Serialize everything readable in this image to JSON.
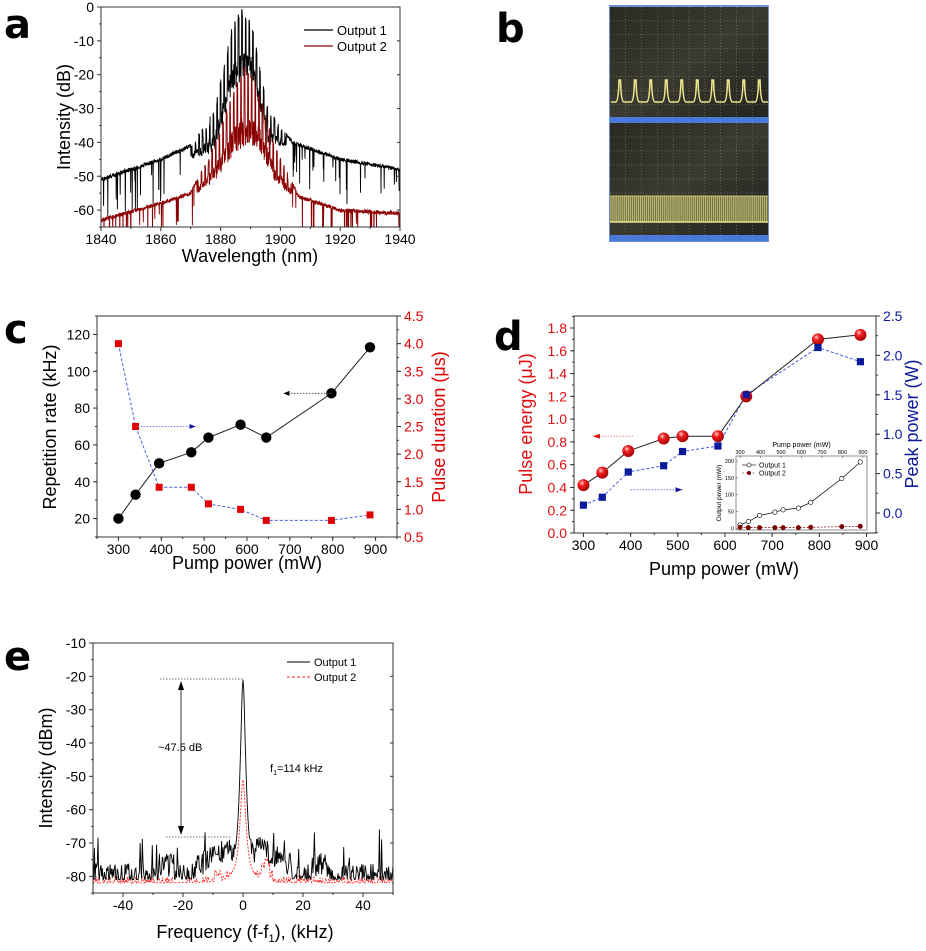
{
  "panels": {
    "a": "a",
    "b": "b",
    "c": "c",
    "d": "d",
    "e": "e"
  },
  "chart_data": [
    {
      "id": "a",
      "type": "line",
      "title": "",
      "xlabel": "Wavelength (nm)",
      "ylabel": "Intensity (dB)",
      "xlim": [
        1840,
        1940
      ],
      "ylim": [
        -65,
        0
      ],
      "xticks": [
        1840,
        1860,
        1880,
        1900,
        1920,
        1940
      ],
      "yticks": [
        0,
        -10,
        -20,
        -30,
        -40,
        -50,
        -60
      ],
      "legend": {
        "position": "top-right",
        "entries": [
          "Output 1",
          "Output 2"
        ]
      },
      "series": [
        {
          "name": "Output 1",
          "color": "#000000",
          "envelope_x": [
            1840,
            1860,
            1870,
            1878,
            1884,
            1887,
            1890,
            1896,
            1904,
            1920,
            1940
          ],
          "envelope_y": [
            -51,
            -45,
            -41,
            -30,
            -5,
            0,
            -3,
            -30,
            -40,
            -45,
            -48
          ],
          "peak_center": 1886,
          "mode_spacing_nm": 1.2
        },
        {
          "name": "Output 2",
          "color": "#8b0000",
          "envelope_x": [
            1840,
            1860,
            1870,
            1878,
            1884,
            1888,
            1892,
            1898,
            1906,
            1920,
            1940
          ],
          "envelope_y": [
            -63,
            -58,
            -55,
            -40,
            -25,
            -17,
            -22,
            -40,
            -56,
            -60,
            -61
          ],
          "peak_center": 1888,
          "mode_spacing_nm": 1.2
        }
      ]
    },
    {
      "id": "b",
      "type": "image",
      "description": "Oscilloscope pulse trains: upper trace shows periodic pulses, lower trace shows dense pulse train",
      "upper_pulse_count": 10
    },
    {
      "id": "c",
      "type": "scatter",
      "xlabel": "Pump power (mW)",
      "ylabel": "Repetition rate (kHz)",
      "y2label": "Pulse duration (μs)",
      "xlim": [
        250,
        950
      ],
      "ylim": [
        10,
        130
      ],
      "y2lim": [
        0.5,
        4.5
      ],
      "xticks": [
        300,
        400,
        500,
        600,
        700,
        800,
        900
      ],
      "yticks": [
        20,
        40,
        60,
        80,
        100,
        120
      ],
      "y2ticks": [
        0.5,
        1.0,
        1.5,
        2.0,
        2.5,
        3.0,
        3.5,
        4.0,
        4.5
      ],
      "x": [
        300,
        340,
        395,
        470,
        510,
        585,
        645,
        797,
        887
      ],
      "series": [
        {
          "name": "Repetition rate",
          "axis": "left",
          "color": "#000000",
          "marker": "circle",
          "line": "solid",
          "values": [
            20,
            33,
            50,
            56,
            64,
            71,
            64,
            88,
            113
          ]
        },
        {
          "name": "Pulse duration",
          "axis": "right",
          "color": "#e00000",
          "line_color": "#4a5ee0",
          "marker": "square",
          "line": "dashed",
          "values": [
            4.0,
            2.5,
            1.4,
            1.4,
            1.1,
            1.0,
            0.8,
            0.8,
            0.9
          ]
        }
      ],
      "annotations": [
        {
          "type": "arrow",
          "direction": "left",
          "from": [
            797,
            88
          ],
          "to": [
            685,
            88
          ],
          "axis": "left",
          "color": "#000000"
        },
        {
          "type": "arrow",
          "direction": "right",
          "from": [
            345,
            2.5
          ],
          "to": [
            480,
            2.5
          ],
          "axis": "right",
          "color": "#1a1aa0"
        }
      ]
    },
    {
      "id": "d",
      "type": "scatter",
      "xlabel": "Pump power (mW)",
      "ylabel": "Pulse energy (μJ)",
      "y2label": "Peak power (W)",
      "xlim": [
        280,
        920
      ],
      "ylim": [
        0,
        1.9
      ],
      "y2lim": [
        -0.27,
        2.5
      ],
      "xticks": [
        300,
        400,
        500,
        600,
        700,
        800,
        900
      ],
      "yticks": [
        0.0,
        0.2,
        0.4,
        0.6,
        0.8,
        1.0,
        1.2,
        1.4,
        1.6,
        1.8
      ],
      "y2ticks": [
        0.0,
        0.5,
        1.0,
        1.5,
        2.0,
        2.5
      ],
      "x": [
        300,
        340,
        395,
        470,
        510,
        585,
        645,
        797,
        887
      ],
      "series": [
        {
          "name": "Pulse energy",
          "axis": "left",
          "color": "#e01010",
          "marker": "sphere",
          "line": "solid",
          "values": [
            0.42,
            0.53,
            0.72,
            0.83,
            0.85,
            0.85,
            1.2,
            1.7,
            1.74
          ]
        },
        {
          "name": "Peak power",
          "axis": "right",
          "color": "#0a1a9a",
          "line_color": "#4a5ee0",
          "marker": "square",
          "line": "dashed",
          "values": [
            0.1,
            0.2,
            0.52,
            0.6,
            0.78,
            0.85,
            1.5,
            2.1,
            1.92
          ]
        }
      ],
      "annotations": [
        {
          "type": "arrow",
          "direction": "left",
          "from": [
            405,
            0.85
          ],
          "to": [
            320,
            0.85
          ],
          "axis": "left",
          "color": "#e01010"
        },
        {
          "type": "arrow",
          "direction": "right",
          "from": [
            400,
            0.38
          ],
          "to": [
            510,
            0.38
          ],
          "axis": "left",
          "color": "#1a1aa0"
        }
      ],
      "inset": {
        "type": "line",
        "xlabel": "Pump power (mW)",
        "ylabel": "Output power (mW)",
        "xlim": [
          280,
          920
        ],
        "ylim": [
          -5,
          215
        ],
        "xticks": [
          300,
          400,
          500,
          600,
          700,
          800,
          900
        ],
        "yticks": [
          0,
          50,
          100,
          150,
          200
        ],
        "legend": {
          "position": "top-left",
          "entries": [
            "Output 1",
            "Output 2"
          ]
        },
        "x": [
          300,
          340,
          395,
          470,
          510,
          585,
          645,
          797,
          887
        ],
        "series": [
          {
            "name": "Output 1",
            "color": "#000000",
            "marker": "open-circle",
            "values": [
              10,
              20,
              38,
              48,
              55,
              60,
              77,
              148,
              197
            ]
          },
          {
            "name": "Output 2",
            "color": "#7a0000",
            "marker": "filled-circle",
            "values": [
              3,
              2,
              2,
              2,
              2,
              2,
              3,
              5,
              6
            ]
          }
        ]
      }
    },
    {
      "id": "e",
      "type": "line",
      "xlabel": "Frequency (f-f₁), (kHz)",
      "ylabel": "Intensity (dBm)",
      "xlim": [
        -50,
        50
      ],
      "ylim": [
        -85,
        -10
      ],
      "xticks": [
        -40,
        -20,
        0,
        20,
        40
      ],
      "yticks": [
        -10,
        -20,
        -30,
        -40,
        -50,
        -60,
        -70,
        -80
      ],
      "legend": {
        "position": "top-right",
        "entries": [
          "Output 1",
          "Output 2"
        ]
      },
      "series": [
        {
          "name": "Output 1",
          "color": "#000000",
          "line": "solid",
          "peak": {
            "x": 0,
            "y": -21
          },
          "noise_floor": -81
        },
        {
          "name": "Output 2",
          "color": "#ff2020",
          "line": "dashed",
          "peak": {
            "x": 0,
            "y": -51
          },
          "noise_floor": -82
        }
      ],
      "annotations": [
        {
          "type": "text",
          "text": "~47.5 dB"
        },
        {
          "type": "text",
          "text": "f",
          "sub": "1",
          "suffix": "=114 kHz"
        },
        {
          "type": "double-arrow",
          "from_y": -21,
          "to_y": -68.5
        }
      ]
    }
  ],
  "text": {
    "a_legend_1": "Output 1",
    "a_legend_2": "Output 2",
    "a_xlabel": "Wavelength (nm)",
    "a_ylabel": "Intensity (dB)",
    "c_xlabel": "Pump power (mW)",
    "c_ylabel": "Repetition rate (kHz)",
    "c_y2label": "Pulse duration (μs)",
    "d_xlabel": "Pump power (mW)",
    "d_ylabel": "Pulse energy (μJ)",
    "d_y2label": "Peak power (W)",
    "d_inset_xlabel": "Pump power (mW)",
    "d_inset_ylabel": "Output power (mW)",
    "d_inset_legend_1": "Output 1",
    "d_inset_legend_2": "Output 2",
    "e_xlabel_pre": "Frequency (f-f",
    "e_xlabel_sub": "1",
    "e_xlabel_post": "), (kHz)",
    "e_ylabel": "Intensity (dBm)",
    "e_legend_1": "Output 1",
    "e_legend_2": "Output 2",
    "e_ann_db": "~47.5 dB",
    "e_ann_f": "f",
    "e_ann_fsub": "1",
    "e_ann_fval": "=114 kHz"
  }
}
